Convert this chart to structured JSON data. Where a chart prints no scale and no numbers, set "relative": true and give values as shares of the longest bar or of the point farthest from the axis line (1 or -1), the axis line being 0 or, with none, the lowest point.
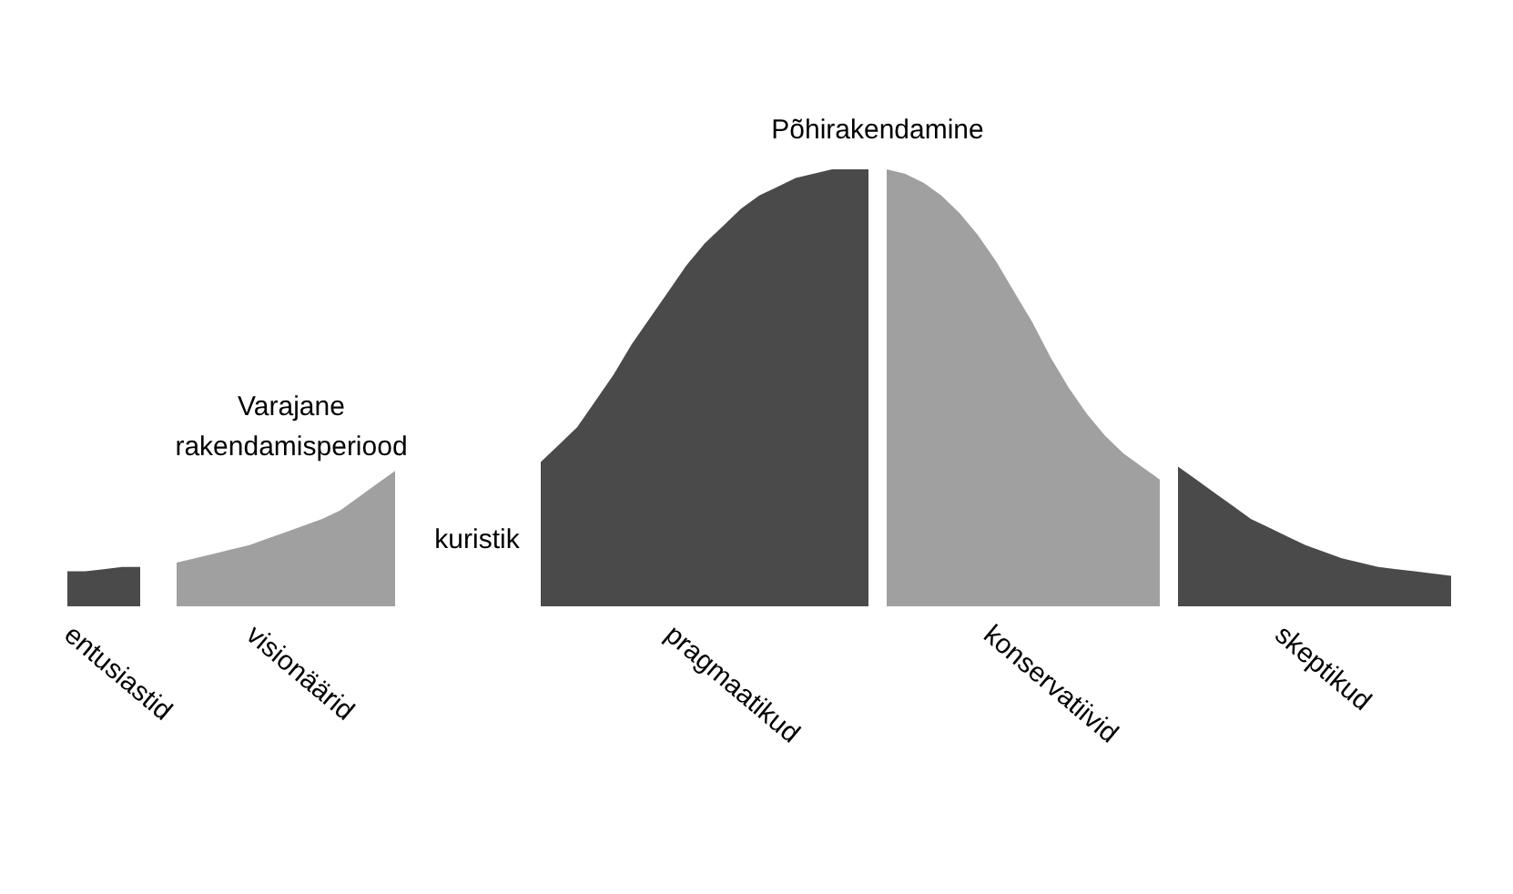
{
  "chart_data": {
    "type": "area",
    "relative": true,
    "legend": false,
    "grid": false,
    "categories": [
      null,
      null,
      null,
      null,
      null,
      null,
      null,
      null,
      null,
      null,
      null,
      null,
      null,
      null,
      null,
      null,
      null,
      null,
      null,
      null,
      null,
      null,
      null,
      null,
      null,
      null,
      null,
      null,
      null,
      null,
      null,
      null,
      null,
      null,
      null,
      null,
      null,
      null,
      null,
      null,
      null,
      null,
      null,
      null,
      null,
      null,
      null,
      null,
      null,
      null,
      null,
      null,
      null,
      null,
      null,
      null,
      null,
      null,
      null,
      null,
      null,
      null,
      null,
      null,
      null,
      null,
      null,
      null,
      null,
      null,
      null,
      null,
      null,
      null,
      null,
      null,
      null
    ],
    "series": [
      {
        "name": "entusiastid",
        "color": "#4a4a4a",
        "values": [
          0.08,
          0.08,
          0.085,
          0.09,
          0.09,
          null,
          null,
          null,
          null,
          null,
          null,
          null,
          null,
          null,
          null,
          null,
          null,
          null,
          null,
          null,
          null,
          null,
          null,
          null,
          null,
          null,
          null,
          null,
          null,
          null,
          null,
          null,
          null,
          null,
          null,
          null,
          null,
          null,
          null,
          null,
          null,
          null,
          null,
          null,
          null,
          null,
          null,
          null,
          null,
          null,
          null,
          null,
          null,
          null,
          null,
          null,
          null,
          null,
          null,
          null,
          null,
          null,
          null,
          null,
          null,
          null,
          null,
          null,
          null,
          null,
          null,
          null,
          null,
          null,
          null,
          null,
          null
        ]
      },
      {
        "name": "visionäärid",
        "color": "#a0a0a0",
        "values": [
          null,
          null,
          null,
          null,
          null,
          null,
          0.1,
          0.11,
          0.12,
          0.13,
          0.14,
          0.155,
          0.17,
          0.185,
          0.2,
          0.22,
          0.25,
          0.28,
          0.31,
          null,
          null,
          null,
          null,
          null,
          null,
          null,
          null,
          null,
          null,
          null,
          null,
          null,
          null,
          null,
          null,
          null,
          null,
          null,
          null,
          null,
          null,
          null,
          null,
          null,
          null,
          null,
          null,
          null,
          null,
          null,
          null,
          null,
          null,
          null,
          null,
          null,
          null,
          null,
          null,
          null,
          null,
          null,
          null,
          null,
          null,
          null,
          null,
          null,
          null,
          null,
          null,
          null,
          null,
          null,
          null,
          null,
          null
        ]
      },
      {
        "name": "pragmaatikud",
        "color": "#4a4a4a",
        "values": [
          null,
          null,
          null,
          null,
          null,
          null,
          null,
          null,
          null,
          null,
          null,
          null,
          null,
          null,
          null,
          null,
          null,
          null,
          null,
          null,
          null,
          null,
          null,
          null,
          null,
          null,
          0.33,
          0.37,
          0.41,
          0.47,
          0.53,
          0.6,
          0.66,
          0.72,
          0.78,
          0.83,
          0.87,
          0.91,
          0.94,
          0.96,
          0.98,
          0.99,
          1,
          1,
          1,
          null,
          null,
          null,
          null,
          null,
          null,
          null,
          null,
          null,
          null,
          null,
          null,
          null,
          null,
          null,
          null,
          null,
          null,
          null,
          null,
          null,
          null,
          null,
          null,
          null,
          null,
          null,
          null,
          null,
          null,
          null,
          null
        ]
      },
      {
        "name": "konservatiivid",
        "color": "#a0a0a0",
        "values": [
          null,
          null,
          null,
          null,
          null,
          null,
          null,
          null,
          null,
          null,
          null,
          null,
          null,
          null,
          null,
          null,
          null,
          null,
          null,
          null,
          null,
          null,
          null,
          null,
          null,
          null,
          null,
          null,
          null,
          null,
          null,
          null,
          null,
          null,
          null,
          null,
          null,
          null,
          null,
          null,
          null,
          null,
          null,
          null,
          null,
          1,
          0.99,
          0.97,
          0.94,
          0.9,
          0.85,
          0.79,
          0.72,
          0.65,
          0.57,
          0.5,
          0.44,
          0.39,
          0.35,
          0.32,
          0.29,
          null,
          null,
          null,
          null,
          null,
          null,
          null,
          null,
          null,
          null,
          null,
          null,
          null,
          null,
          null,
          null
        ]
      },
      {
        "name": "skeptikud",
        "color": "#4a4a4a",
        "values": [
          null,
          null,
          null,
          null,
          null,
          null,
          null,
          null,
          null,
          null,
          null,
          null,
          null,
          null,
          null,
          null,
          null,
          null,
          null,
          null,
          null,
          null,
          null,
          null,
          null,
          null,
          null,
          null,
          null,
          null,
          null,
          null,
          null,
          null,
          null,
          null,
          null,
          null,
          null,
          null,
          null,
          null,
          null,
          null,
          null,
          null,
          null,
          null,
          null,
          null,
          null,
          null,
          null,
          null,
          null,
          null,
          null,
          null,
          null,
          null,
          null,
          0.32,
          0.29,
          0.26,
          0.23,
          0.2,
          0.18,
          0.16,
          0.14,
          0.125,
          0.11,
          0.1,
          0.09,
          0.085,
          0.08,
          0.075,
          0.07
        ]
      }
    ],
    "annotations": [
      "Varajane rakendamisperiood",
      "Põhirakendamine",
      "kuristik"
    ]
  }
}
